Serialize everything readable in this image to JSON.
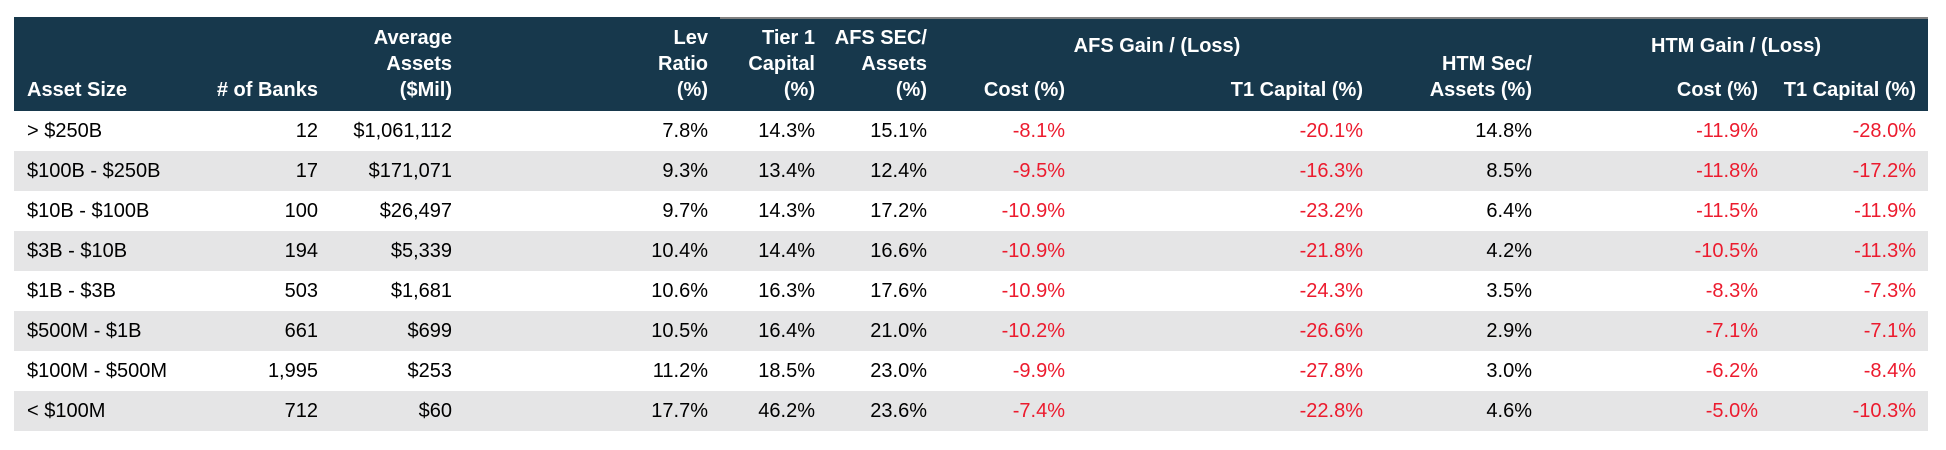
{
  "colors": {
    "header_bg": "#17384C",
    "header_text": "#FFFFFF",
    "negative_value": "#EC1B2E",
    "row_alt_bg": "#E5E5E6",
    "row_bg": "#FFFFFF",
    "body_text": "#000000",
    "header_top_rule": "#808080"
  },
  "table": {
    "columns": {
      "asset_size": "Asset Size",
      "num_banks": "# of Banks",
      "avg_assets": {
        "lines": [
          "Average",
          "Assets",
          "($Mil)"
        ]
      },
      "lev_ratio": {
        "lines": [
          "Lev",
          "Ratio",
          "(%)"
        ]
      },
      "tier1_capital": {
        "lines": [
          "Tier 1",
          "Capital",
          "(%)"
        ]
      },
      "afs_sec_assets": {
        "lines": [
          "AFS SEC/",
          "Assets",
          "(%)"
        ]
      },
      "afs_gain_loss": {
        "label": "AFS Gain / (Loss)",
        "subs": [
          "Cost (%)",
          "T1 Capital (%)"
        ]
      },
      "htm_sec_assets": {
        "lines": [
          "HTM Sec/",
          "Assets (%)"
        ]
      },
      "htm_gain_loss": {
        "label": "HTM Gain / (Loss)",
        "subs": [
          "Cost (%)",
          "T1 Capital (%)"
        ]
      }
    },
    "rows": [
      [
        "> $250B",
        "12",
        "$1,061,112",
        "7.8%",
        "14.3%",
        "15.1%",
        "-8.1%",
        "-20.1%",
        "14.8%",
        "-11.9%",
        "-28.0%"
      ],
      [
        "$100B - $250B",
        "17",
        "$171,071",
        "9.3%",
        "13.4%",
        "12.4%",
        "-9.5%",
        "-16.3%",
        "8.5%",
        "-11.8%",
        "-17.2%"
      ],
      [
        "$10B - $100B",
        "100",
        "$26,497",
        "9.7%",
        "14.3%",
        "17.2%",
        "-10.9%",
        "-23.2%",
        "6.4%",
        "-11.5%",
        "-11.9%"
      ],
      [
        "$3B - $10B",
        "194",
        "$5,339",
        "10.4%",
        "14.4%",
        "16.6%",
        "-10.9%",
        "-21.8%",
        "4.2%",
        "-10.5%",
        "-11.3%"
      ],
      [
        "$1B - $3B",
        "503",
        "$1,681",
        "10.6%",
        "16.3%",
        "17.6%",
        "-10.9%",
        "-24.3%",
        "3.5%",
        "-8.3%",
        "-7.3%"
      ],
      [
        "$500M - $1B",
        "661",
        "$699",
        "10.5%",
        "16.4%",
        "21.0%",
        "-10.2%",
        "-26.6%",
        "2.9%",
        "-7.1%",
        "-7.1%"
      ],
      [
        "$100M - $500M",
        "1,995",
        "$253",
        "11.2%",
        "18.5%",
        "23.0%",
        "-9.9%",
        "-27.8%",
        "3.0%",
        "-6.2%",
        "-8.4%"
      ],
      [
        "< $100M",
        "712",
        "$60",
        "17.7%",
        "46.2%",
        "23.6%",
        "-7.4%",
        "-22.8%",
        "4.6%",
        "-5.0%",
        "-10.3%"
      ]
    ]
  }
}
